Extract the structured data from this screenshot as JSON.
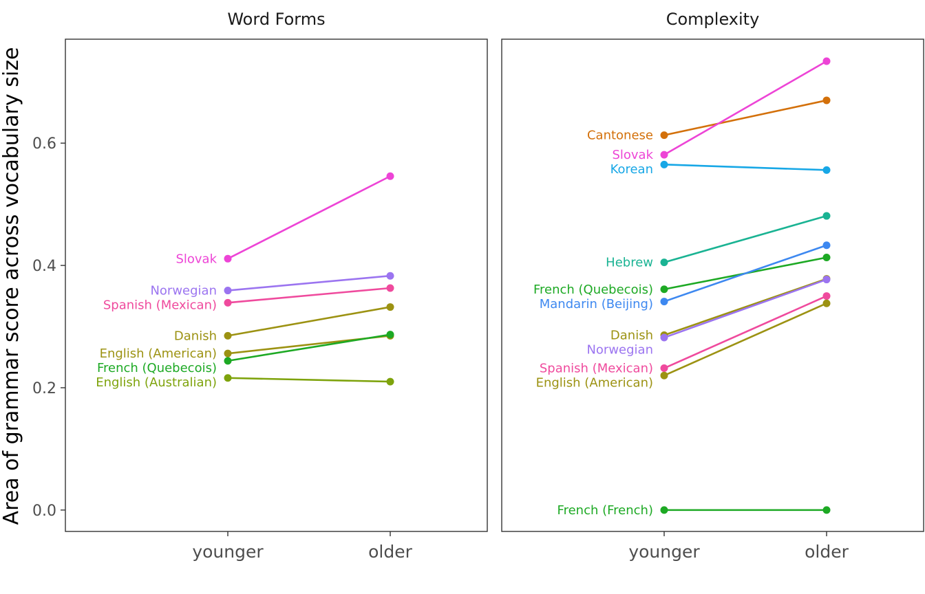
{
  "chart_data": {
    "type": "line",
    "ylabel": "Area of grammar score across vocabulary size",
    "xlabel": "",
    "ylim": [
      -0.035,
      0.77
    ],
    "yticks": [
      0.0,
      0.2,
      0.4,
      0.6
    ],
    "ytick_labels": [
      "0.0",
      "0.2",
      "0.4",
      "0.6"
    ],
    "categories": [
      "younger",
      "older"
    ],
    "grid": false,
    "legend": "none (direct labels at left end of each line)",
    "panels": [
      {
        "title": "Word Forms",
        "series": [
          {
            "name": "Slovak",
            "values": [
              0.411,
              0.546
            ],
            "color": "#ED44D6"
          },
          {
            "name": "Norwegian",
            "values": [
              0.359,
              0.383
            ],
            "color": "#9B74F0"
          },
          {
            "name": "Spanish (Mexican)",
            "values": [
              0.339,
              0.363
            ],
            "color": "#EF4A9D"
          },
          {
            "name": "Danish",
            "values": [
              0.285,
              0.332
            ],
            "color": "#9C9212"
          },
          {
            "name": "English (American)",
            "values": [
              0.256,
              0.285
            ],
            "color": "#9C9212"
          },
          {
            "name": "French (Quebecois)",
            "values": [
              0.244,
              0.287
            ],
            "color": "#1DA924"
          },
          {
            "name": "English (Australian)",
            "values": [
              0.216,
              0.21
            ],
            "color": "#7EA30C"
          }
        ]
      },
      {
        "title": "Complexity",
        "series": [
          {
            "name": "Cantonese",
            "values": [
              0.613,
              0.67
            ],
            "color": "#D3700A"
          },
          {
            "name": "Slovak",
            "values": [
              0.581,
              0.734
            ],
            "color": "#ED44D6"
          },
          {
            "name": "Korean",
            "values": [
              0.565,
              0.556
            ],
            "color": "#17A7E6"
          },
          {
            "name": "Hebrew",
            "values": [
              0.405,
              0.481
            ],
            "color": "#1AB393"
          },
          {
            "name": "French (Quebecois)",
            "values": [
              0.361,
              0.413
            ],
            "color": "#1DA924"
          },
          {
            "name": "Mandarin (Beijing)",
            "values": [
              0.341,
              0.433
            ],
            "color": "#3D88F0"
          },
          {
            "name": "Danish",
            "values": [
              0.286,
              0.378
            ],
            "color": "#9C9212"
          },
          {
            "name": "Norwegian",
            "values": [
              0.282,
              0.377
            ],
            "color": "#9B74F0"
          },
          {
            "name": "Spanish (Mexican)",
            "values": [
              0.232,
              0.35
            ],
            "color": "#EF4A9D"
          },
          {
            "name": "English (American)",
            "values": [
              0.22,
              0.338
            ],
            "color": "#9C9212"
          },
          {
            "name": "French (French)",
            "values": [
              0.0,
              0.0
            ],
            "color": "#1DA924"
          }
        ]
      }
    ]
  }
}
